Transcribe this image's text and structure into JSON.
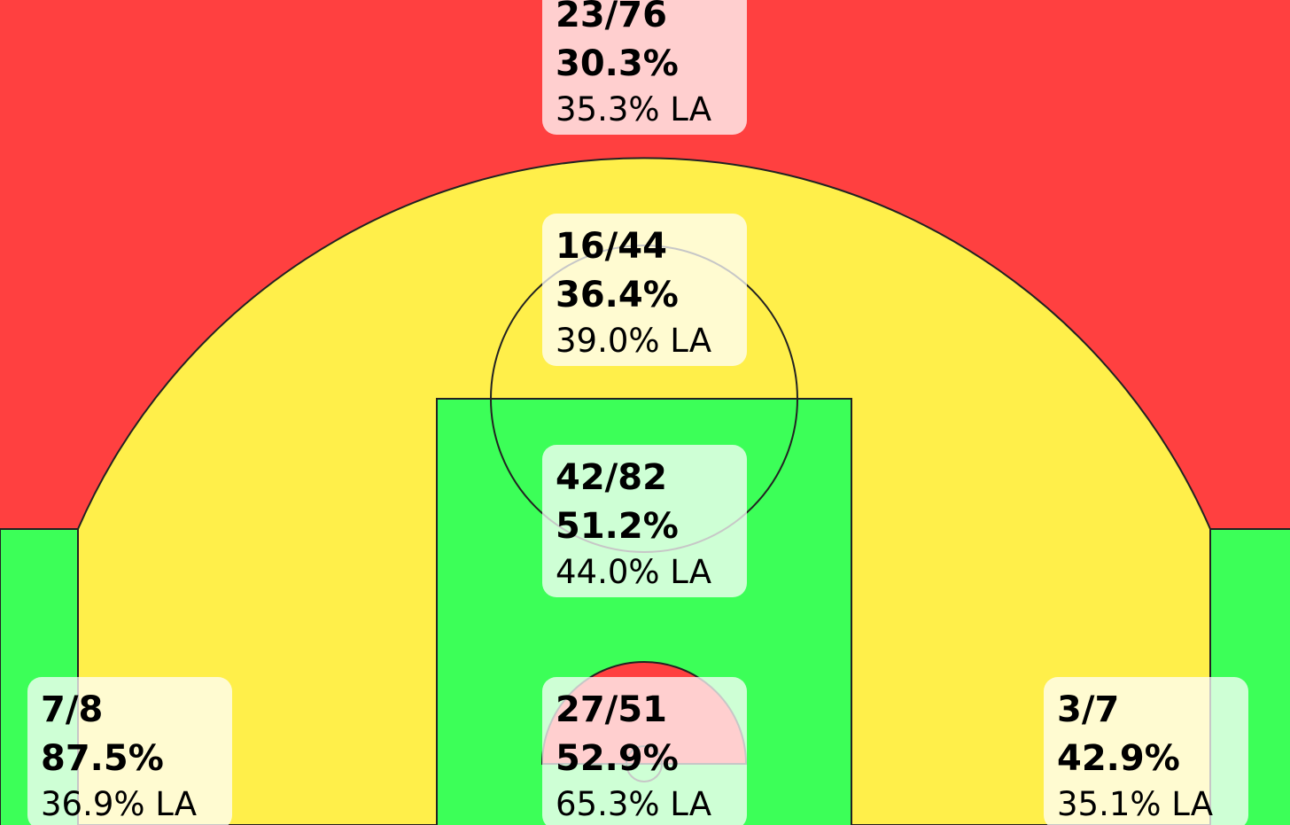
{
  "zones": [
    {
      "shots": "23/76",
      "pct": "30.3%",
      "league": "35.3% LA"
    },
    {
      "shots": "16/44",
      "pct": "36.4%",
      "league": "39.0% LA"
    },
    {
      "shots": "42/82",
      "pct": "51.2%",
      "league": "44.0% LA"
    },
    {
      "shots": "27/51",
      "pct": "52.9%",
      "league": "65.3% LA"
    },
    {
      "shots": "7/8",
      "pct": "87.5%",
      "league": "36.9% LA"
    },
    {
      "shots": "3/7",
      "pct": "42.9%",
      "league": "35.1% LA"
    }
  ]
}
